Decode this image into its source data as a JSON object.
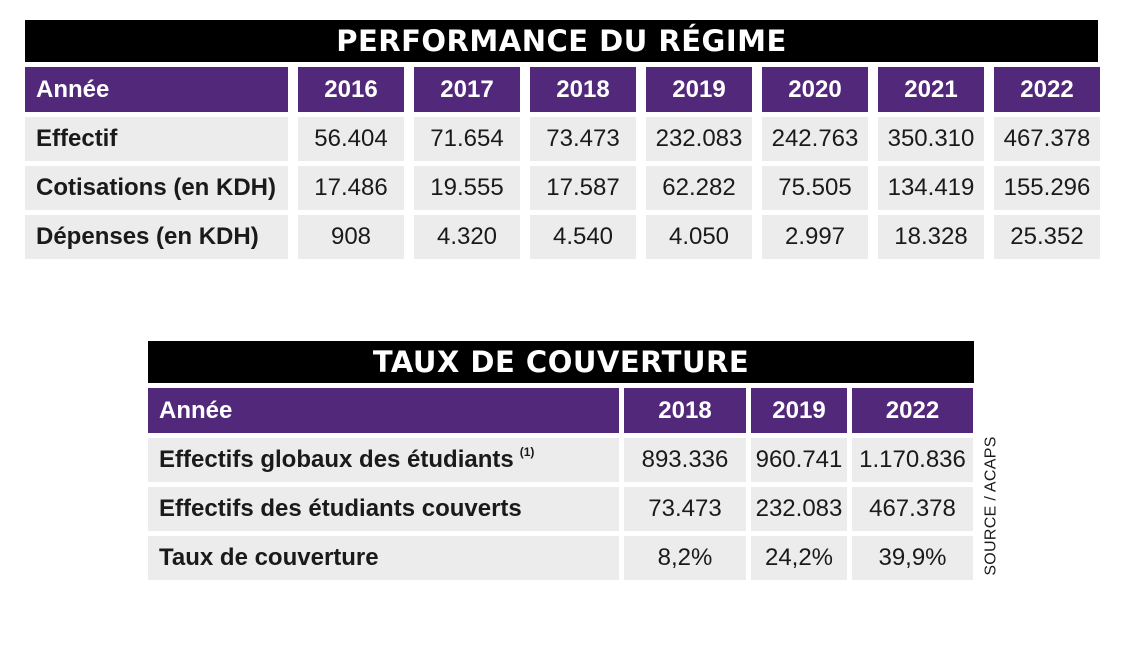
{
  "performance": {
    "title": "PERFORMANCE DU RÉGIME",
    "year_label": "Année",
    "years": [
      "2016",
      "2017",
      "2018",
      "2019",
      "2020",
      "2021",
      "2022"
    ],
    "rows": [
      {
        "label": "Effectif",
        "values": [
          "56.404",
          "71.654",
          "73.473",
          "232.083",
          "242.763",
          "350.310",
          "467.378"
        ]
      },
      {
        "label": "Cotisations (en KDH)",
        "values": [
          "17.486",
          "19.555",
          "17.587",
          "62.282",
          "75.505",
          "134.419",
          "155.296"
        ]
      },
      {
        "label": "Dépenses (en KDH)",
        "values": [
          "908",
          "4.320",
          "4.540",
          "4.050",
          "2.997",
          "18.328",
          "25.352"
        ]
      }
    ]
  },
  "coverage": {
    "title": "TAUX DE COUVERTURE",
    "year_label": "Année",
    "years": [
      "2018",
      "2019",
      "2022"
    ],
    "rows": [
      {
        "label": "Effectifs globaux des étudiants",
        "note": "(1)",
        "values": [
          "893.336",
          "960.741",
          "1.170.836"
        ]
      },
      {
        "label": "Effectifs des étudiants couverts",
        "values": [
          "73.473",
          "232.083",
          "467.378"
        ]
      },
      {
        "label": "Taux de couverture",
        "values": [
          "8,2%",
          "24,2%",
          "39,9%"
        ]
      }
    ]
  },
  "source": "SOURCE / ACAPS",
  "colors": {
    "header": "#52297a",
    "title_bar": "#000000",
    "cell": "#ececec"
  }
}
